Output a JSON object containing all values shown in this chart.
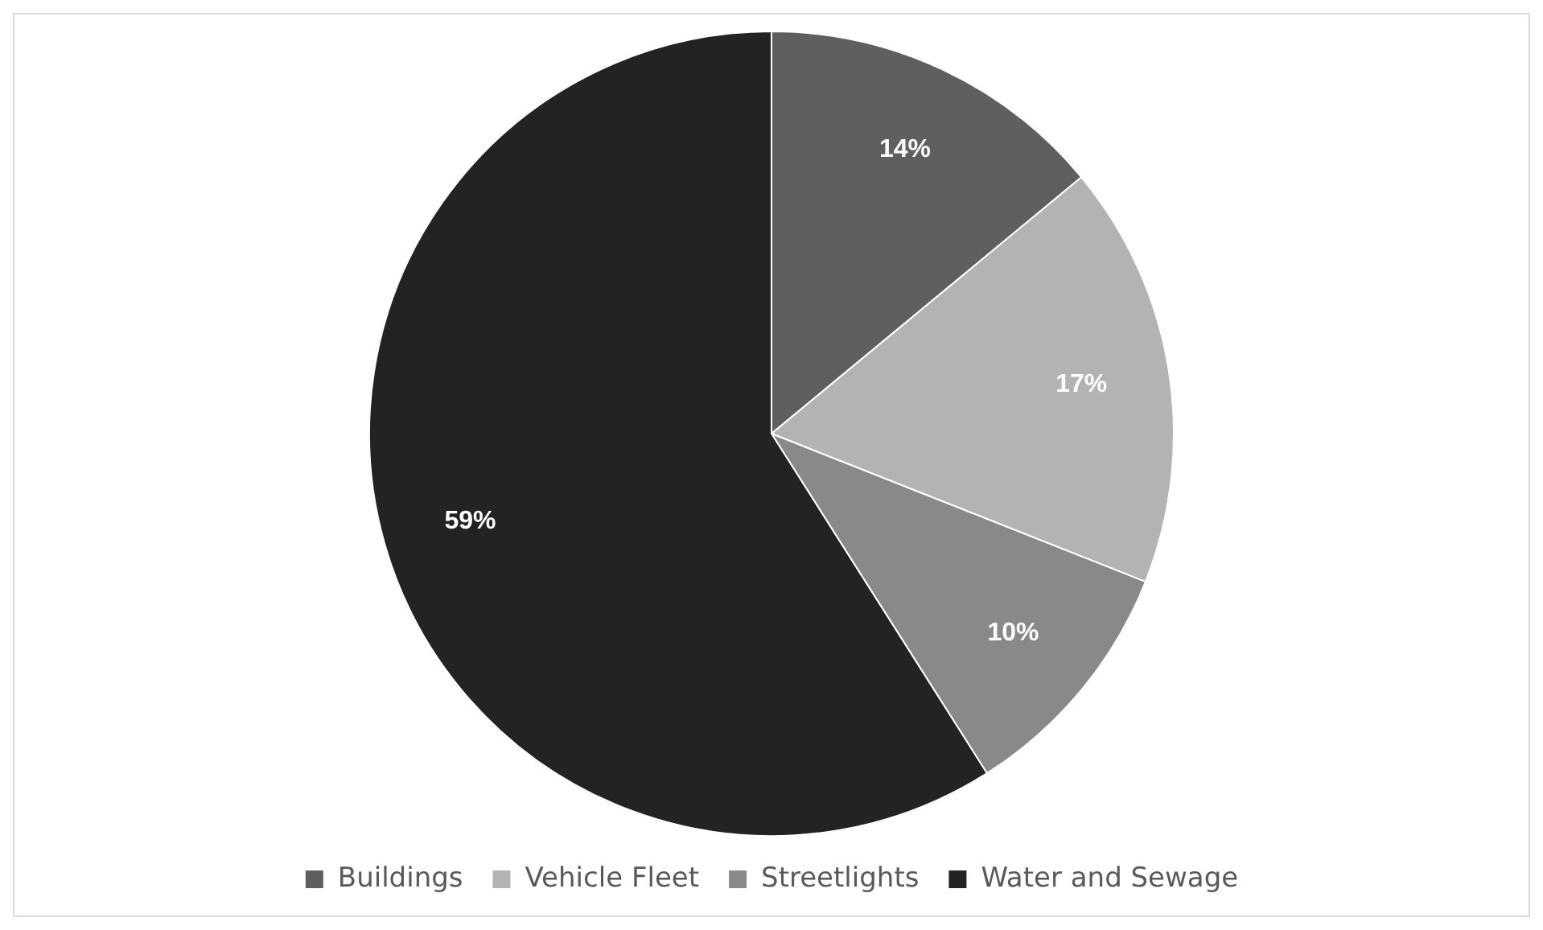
{
  "chart_data": {
    "type": "pie",
    "categories": [
      "Buildings",
      "Vehicle Fleet",
      "Streetlights",
      "Water and Sewage"
    ],
    "values": [
      14,
      17,
      10,
      59
    ],
    "colors": [
      "#5f5f5f",
      "#b3b3b3",
      "#898989",
      "#232323"
    ],
    "value_labels": [
      "14%",
      "17%",
      "10%",
      "59%"
    ],
    "legend": "bottom"
  }
}
